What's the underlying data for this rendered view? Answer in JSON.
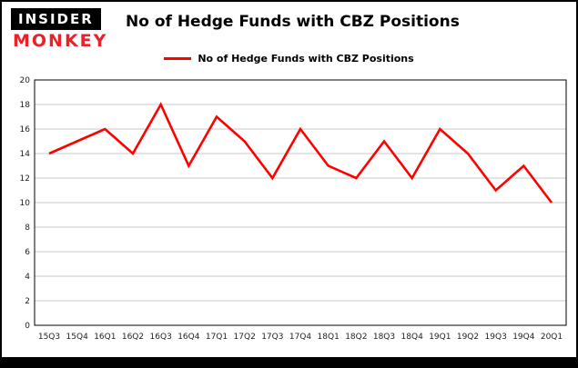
{
  "logo": {
    "line1": "INSIDER",
    "line2": "MONKEY"
  },
  "title": "No of Hedge Funds with CBZ Positions",
  "legend": {
    "label": "No of Hedge Funds with CBZ Positions",
    "color": "#ff0000"
  },
  "chart_data": {
    "type": "line",
    "title": "No of Hedge Funds with CBZ Positions",
    "categories": [
      "15Q3",
      "15Q4",
      "16Q1",
      "16Q2",
      "16Q3",
      "16Q4",
      "17Q1",
      "17Q2",
      "17Q3",
      "17Q4",
      "18Q1",
      "18Q2",
      "18Q3",
      "18Q4",
      "19Q1",
      "19Q2",
      "19Q3",
      "19Q4",
      "20Q1"
    ],
    "series": [
      {
        "name": "No of Hedge Funds with CBZ Positions",
        "values": [
          14,
          15,
          16,
          14,
          18,
          13,
          17,
          15,
          12,
          16,
          13,
          12,
          15,
          12,
          16,
          14,
          11,
          13,
          10
        ]
      }
    ],
    "xlabel": "",
    "ylabel": "",
    "ylim": [
      0,
      20
    ],
    "ytick_step": 2,
    "grid": true,
    "legend_position": "top",
    "line_color": "#ff0000",
    "grid_color": "#c9c9c9"
  }
}
